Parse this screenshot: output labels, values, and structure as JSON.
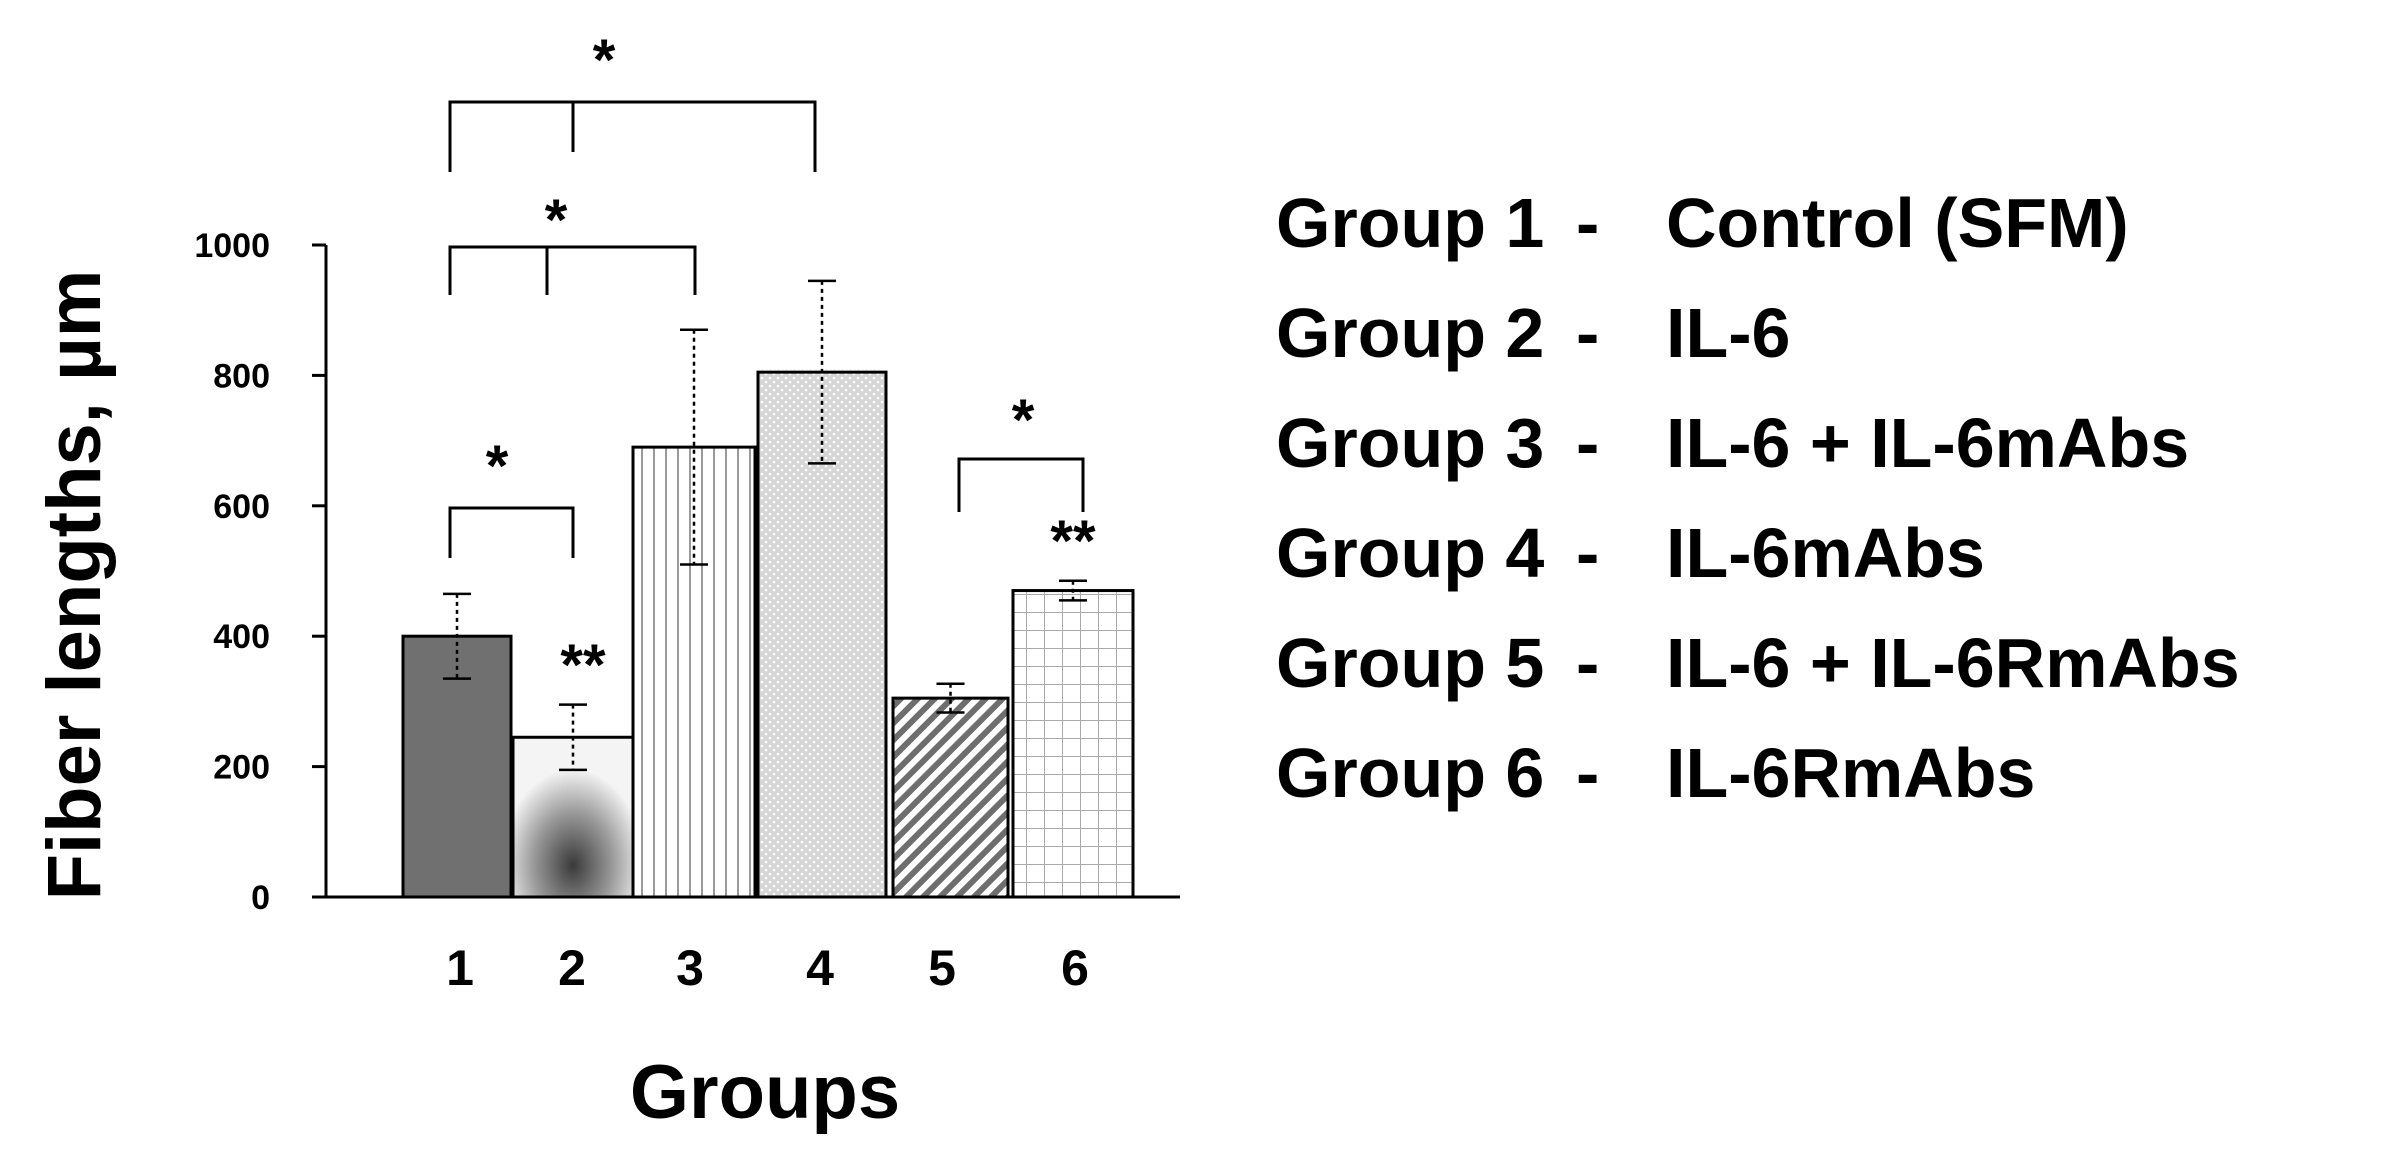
{
  "chart_data": {
    "type": "bar",
    "xlabel": "Groups",
    "ylabel": "Fiber lengths, µm",
    "ylim": [
      0,
      1000
    ],
    "yticks": [
      "0",
      "200",
      "400",
      "600",
      "800",
      "1000"
    ],
    "categories": [
      "1",
      "2",
      "3",
      "4",
      "5",
      "6"
    ],
    "values": [
      400,
      245,
      690,
      805,
      305,
      470
    ],
    "errors": [
      65,
      50,
      180,
      140,
      22,
      15
    ],
    "significance_marks": [
      {
        "label": "*",
        "between": [
          "1",
          "4"
        ]
      },
      {
        "label": "*",
        "between": [
          "1",
          "3"
        ]
      },
      {
        "label": "*",
        "between": [
          "1",
          "2"
        ]
      },
      {
        "label": "*",
        "between": [
          "5",
          "6"
        ]
      },
      {
        "label": "**",
        "above": "2"
      },
      {
        "label": "**",
        "above": "6"
      }
    ],
    "legend": [
      {
        "group": "Group 1",
        "sep": "-",
        "desc": "Control (SFM)"
      },
      {
        "group": "Group 2",
        "sep": "-",
        "desc": "IL-6"
      },
      {
        "group": "Group 3",
        "sep": "-",
        "desc": "IL-6 + IL-6mAbs"
      },
      {
        "group": "Group 4",
        "sep": "-",
        "desc": "IL-6mAbs"
      },
      {
        "group": "Group 5",
        "sep": "-",
        "desc": "IL-6 + IL-6RmAbs"
      },
      {
        "group": "Group 6",
        "sep": "-",
        "desc": "IL-6RmAbs"
      }
    ],
    "legend_position": "right",
    "grid": false
  }
}
